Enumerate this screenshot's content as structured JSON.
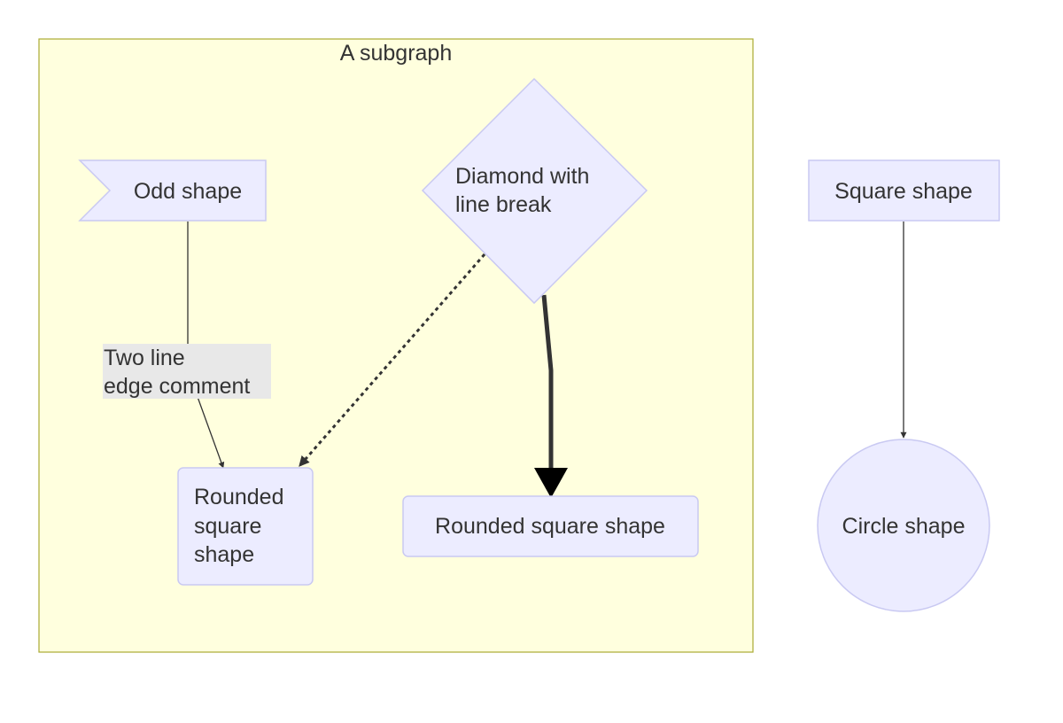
{
  "subgraph": {
    "title": "A subgraph"
  },
  "nodes": {
    "odd": {
      "label": "Odd shape"
    },
    "diamond": {
      "line1": "Diamond with",
      "line2": "line break"
    },
    "square": {
      "label": "Square shape"
    },
    "rounded_left": {
      "line1": "Rounded",
      "line2": "square",
      "line3": "shape"
    },
    "rounded_mid": {
      "label": "Rounded square shape"
    },
    "circle": {
      "label": "Circle shape"
    }
  },
  "edges": {
    "odd_to_rounded": {
      "line1": "Two line",
      "line2": "edge comment"
    }
  },
  "colors": {
    "subgraph_fill": "#ffffde",
    "subgraph_stroke": "#aaaa33",
    "node_fill": "#ececff",
    "node_stroke": "#c9c9f2",
    "edge": "#333333",
    "edge_label_bg": "#e8e8e8",
    "text": "#333333"
  }
}
